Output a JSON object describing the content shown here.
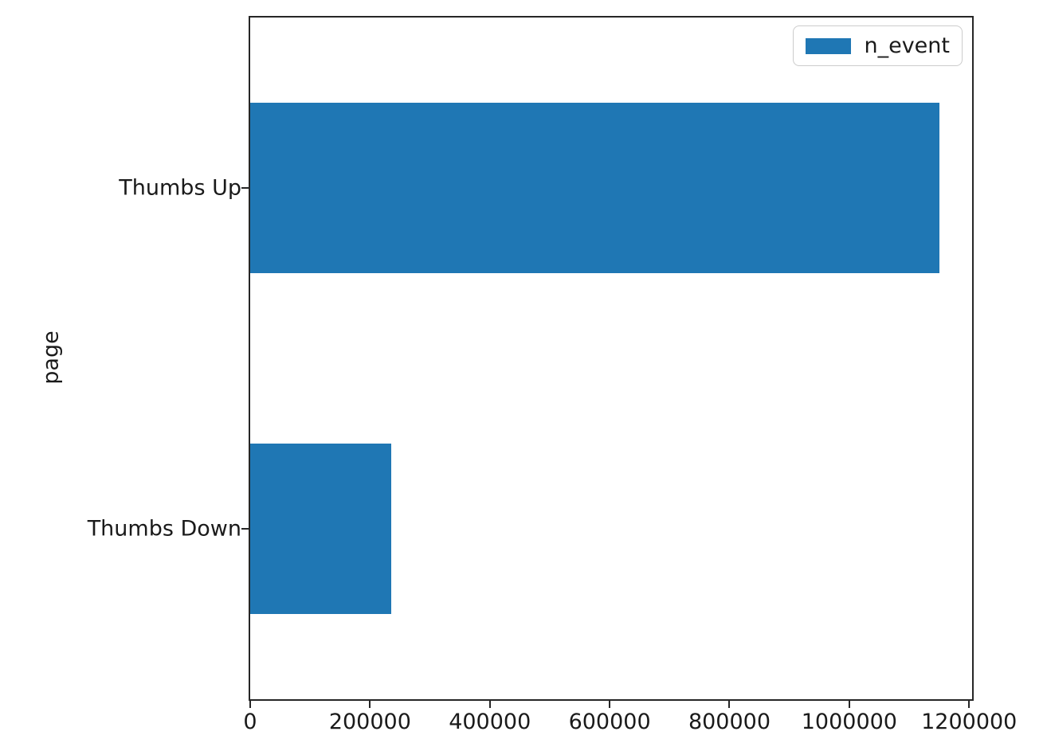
{
  "chart_data": {
    "type": "bar",
    "orientation": "horizontal",
    "title": "",
    "xlabel": "",
    "ylabel": "page",
    "categories": [
      "Thumbs Up",
      "Thumbs Down"
    ],
    "series": [
      {
        "name": "n_event",
        "values": [
          1150000,
          236000
        ]
      }
    ],
    "xlim": [
      0,
      1205000
    ],
    "xticks": [
      0,
      200000,
      400000,
      600000,
      800000,
      1000000,
      1200000
    ],
    "xtick_labels": [
      "0",
      "200000",
      "400000",
      "600000",
      "800000",
      "1000000",
      "1200000"
    ],
    "bar_color": "#1f77b4",
    "bar_width_fraction": 0.5,
    "grid": false,
    "legend": {
      "position": "upper right",
      "entries": [
        "n_event"
      ]
    }
  }
}
